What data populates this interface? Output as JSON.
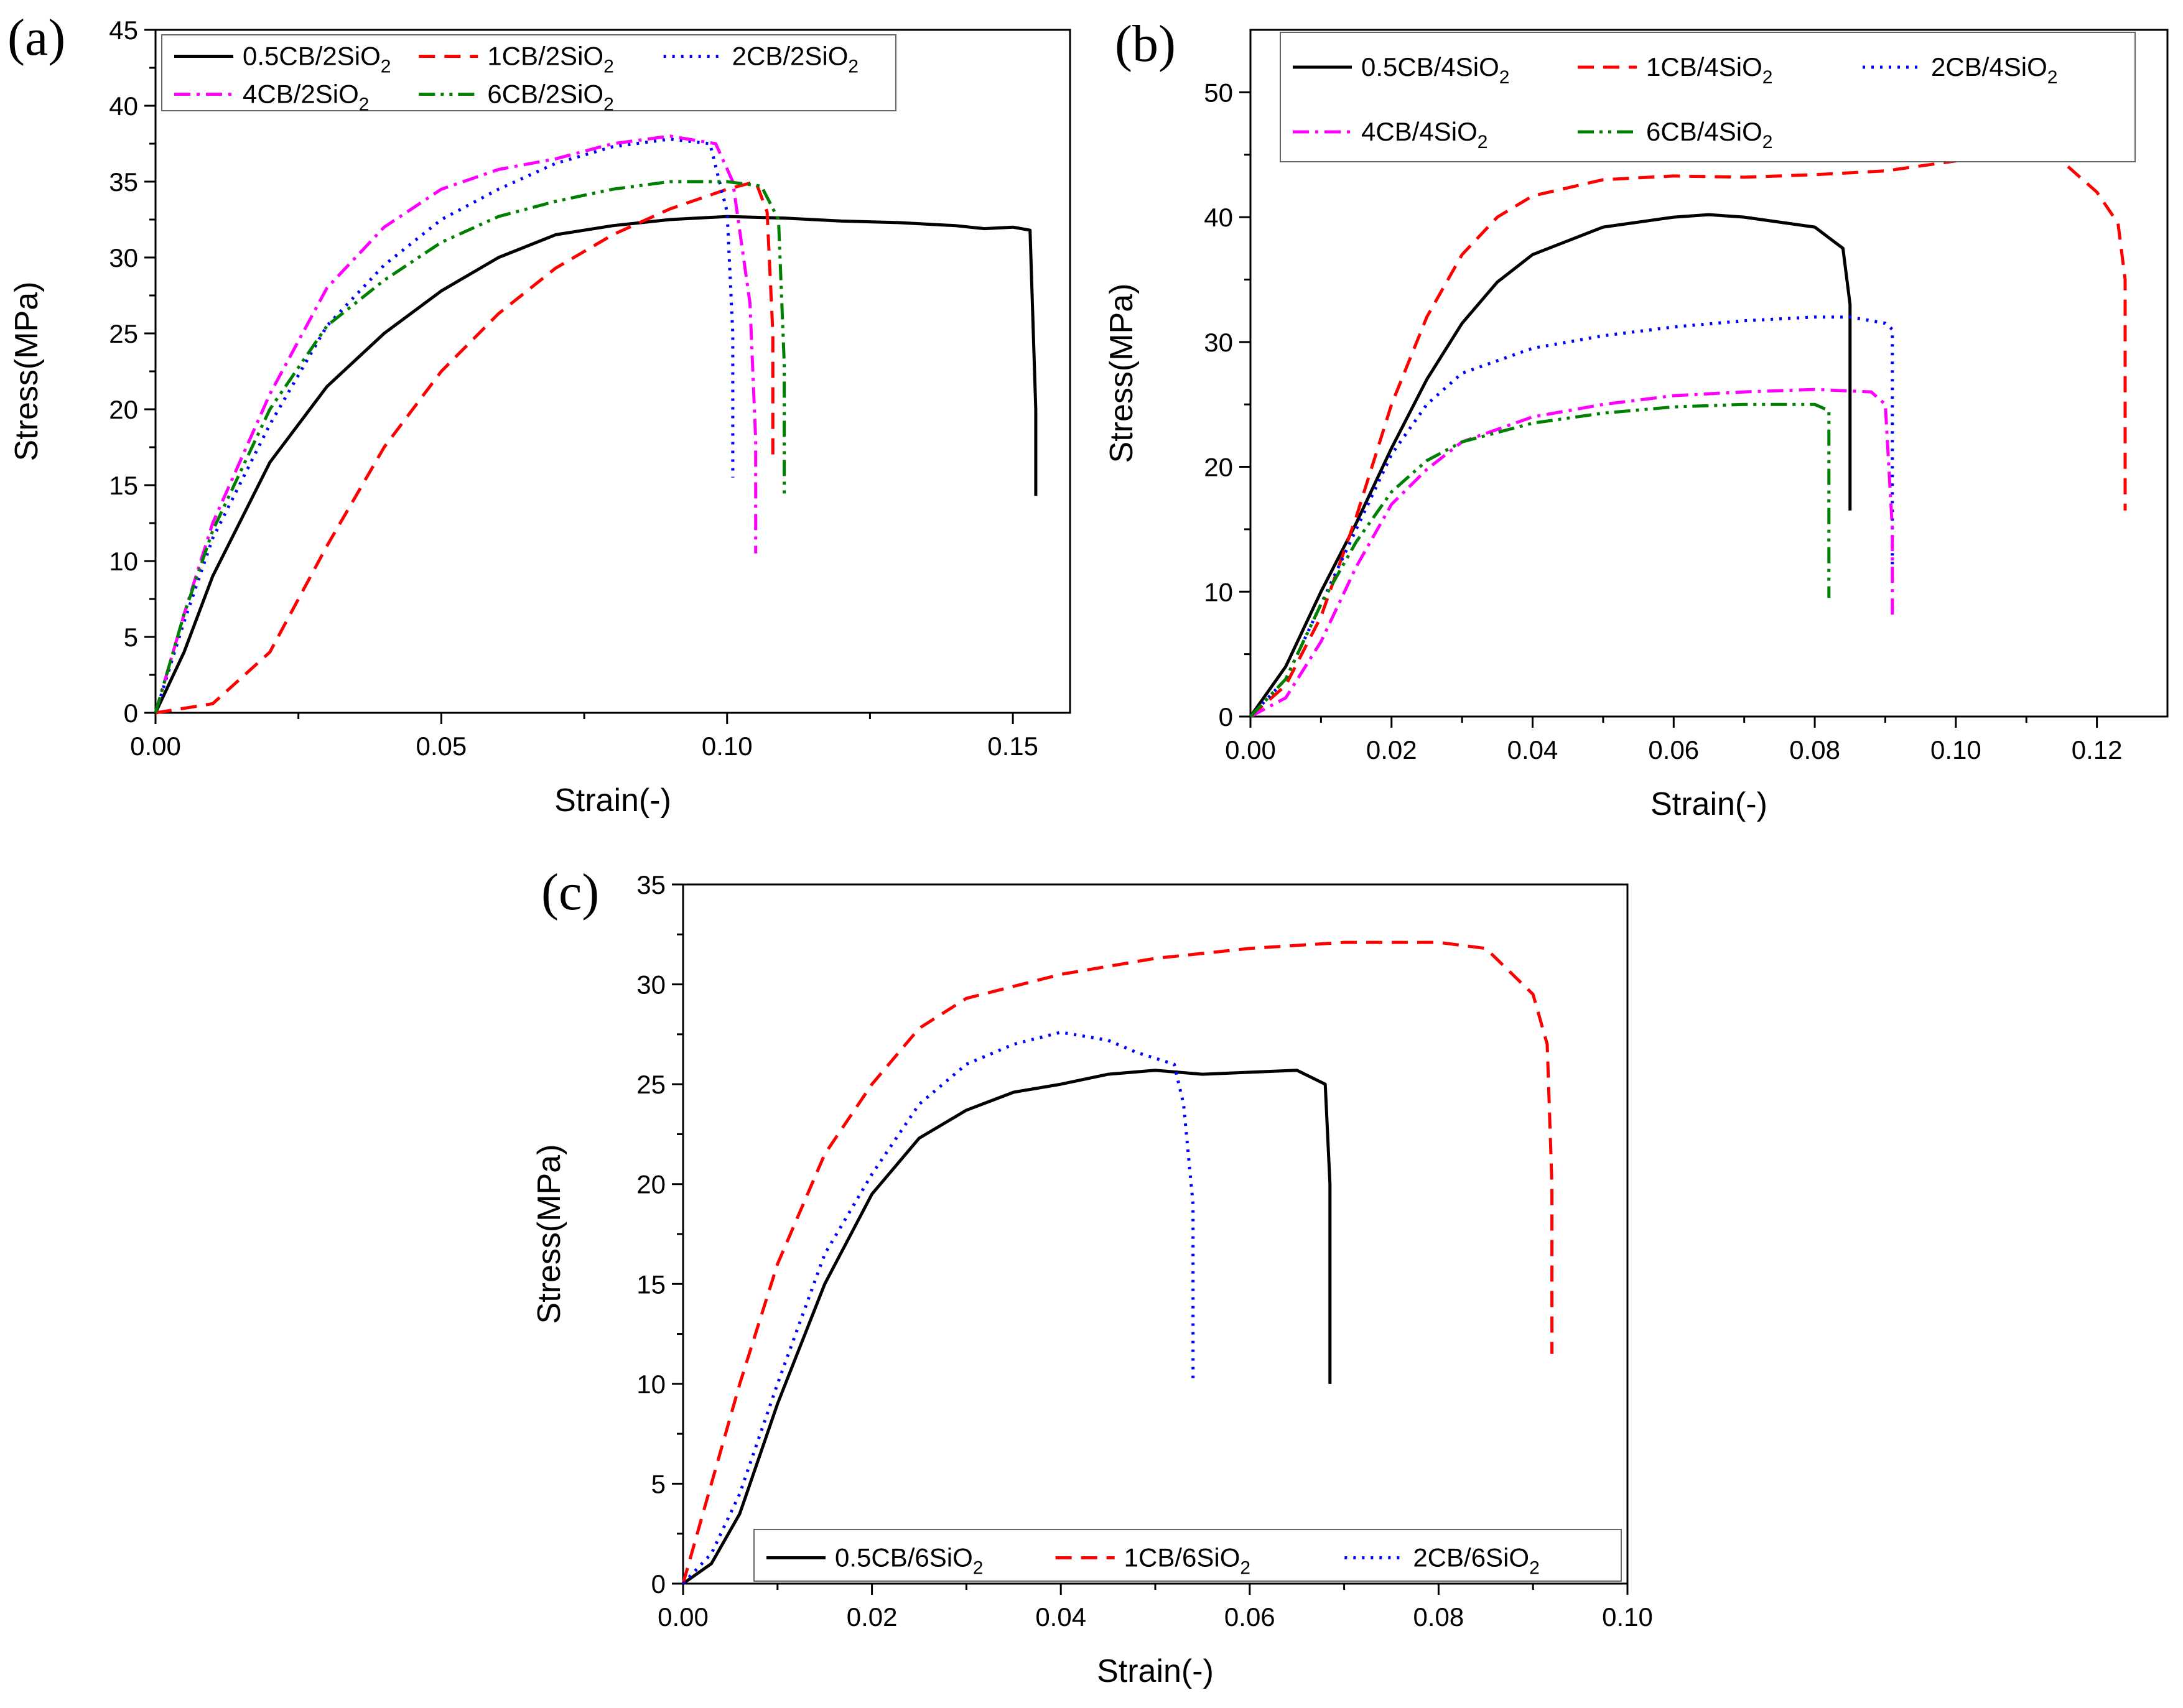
{
  "figure": {
    "xlabel": "Strain(-)",
    "ylabel": "Stress(MPa)"
  },
  "chart_data": [
    {
      "type": "line",
      "panel": "(a)",
      "xlabel": "Strain(-)",
      "ylabel": "Stress(MPa)",
      "xlim": [
        0,
        0.16
      ],
      "ylim": [
        0,
        45
      ],
      "xticks": [
        0,
        0.05,
        0.1,
        0.15
      ],
      "xtick_labels": [
        "0.00",
        "0.05",
        "0.10",
        "0.15"
      ],
      "yticks": [
        0,
        5,
        10,
        15,
        20,
        25,
        30,
        35,
        40,
        45
      ],
      "ytick_labels": [
        "0",
        "5",
        "10",
        "15",
        "20",
        "25",
        "30",
        "35",
        "40",
        "45"
      ],
      "grid": false,
      "legend_position": "top",
      "series": [
        {
          "name": "0.5CB/2SiO",
          "subscript": "2",
          "color": "#000000",
          "dash": "solid",
          "points": [
            [
              0,
              0
            ],
            [
              0.005,
              4
            ],
            [
              0.01,
              9
            ],
            [
              0.02,
              16.5
            ],
            [
              0.03,
              21.5
            ],
            [
              0.04,
              25
            ],
            [
              0.05,
              27.8
            ],
            [
              0.06,
              30
            ],
            [
              0.07,
              31.5
            ],
            [
              0.08,
              32.1
            ],
            [
              0.09,
              32.5
            ],
            [
              0.1,
              32.7
            ],
            [
              0.11,
              32.6
            ],
            [
              0.12,
              32.4
            ],
            [
              0.13,
              32.3
            ],
            [
              0.14,
              32.1
            ],
            [
              0.145,
              31.9
            ],
            [
              0.15,
              32
            ],
            [
              0.153,
              31.8
            ],
            [
              0.154,
              20
            ],
            [
              0.154,
              14.3
            ]
          ]
        },
        {
          "name": "1CB/2SiO",
          "subscript": "2",
          "color": "#ff0000",
          "dash": "dashed",
          "points": [
            [
              0,
              0
            ],
            [
              0.01,
              0.6
            ],
            [
              0.02,
              4
            ],
            [
              0.03,
              11
            ],
            [
              0.04,
              17.5
            ],
            [
              0.05,
              22.5
            ],
            [
              0.06,
              26.3
            ],
            [
              0.07,
              29.3
            ],
            [
              0.08,
              31.5
            ],
            [
              0.09,
              33.2
            ],
            [
              0.1,
              34.5
            ],
            [
              0.105,
              35
            ],
            [
              0.107,
              33
            ],
            [
              0.108,
              25
            ],
            [
              0.108,
              16.5
            ]
          ]
        },
        {
          "name": "2CB/2SiO",
          "subscript": "2",
          "color": "#0000ff",
          "dash": "dotted",
          "points": [
            [
              0,
              0
            ],
            [
              0.005,
              6
            ],
            [
              0.01,
              11.5
            ],
            [
              0.02,
              19
            ],
            [
              0.03,
              25.5
            ],
            [
              0.04,
              29.5
            ],
            [
              0.05,
              32.5
            ],
            [
              0.06,
              34.5
            ],
            [
              0.07,
              36.2
            ],
            [
              0.08,
              37.3
            ],
            [
              0.09,
              37.8
            ],
            [
              0.097,
              37.5
            ],
            [
              0.1,
              33
            ],
            [
              0.101,
              25
            ],
            [
              0.101,
              15.5
            ]
          ]
        },
        {
          "name": "4CB/2SiO",
          "subscript": "2",
          "color": "#ff00ff",
          "dash": "dashdot",
          "points": [
            [
              0,
              0
            ],
            [
              0.005,
              6.5
            ],
            [
              0.01,
              12.5
            ],
            [
              0.02,
              21
            ],
            [
              0.03,
              28
            ],
            [
              0.04,
              32
            ],
            [
              0.05,
              34.5
            ],
            [
              0.06,
              35.8
            ],
            [
              0.07,
              36.5
            ],
            [
              0.08,
              37.5
            ],
            [
              0.09,
              38
            ],
            [
              0.098,
              37.5
            ],
            [
              0.101,
              35
            ],
            [
              0.104,
              27
            ],
            [
              0.105,
              18
            ],
            [
              0.105,
              10.5
            ]
          ]
        },
        {
          "name": "6CB/2SiO",
          "subscript": "2",
          "color": "#008000",
          "dash": "dashdotdot",
          "points": [
            [
              0,
              0
            ],
            [
              0.005,
              6.5
            ],
            [
              0.01,
              12
            ],
            [
              0.02,
              20
            ],
            [
              0.03,
              25.5
            ],
            [
              0.04,
              28.5
            ],
            [
              0.05,
              31
            ],
            [
              0.06,
              32.7
            ],
            [
              0.07,
              33.7
            ],
            [
              0.08,
              34.5
            ],
            [
              0.09,
              35
            ],
            [
              0.1,
              35
            ],
            [
              0.106,
              34.7
            ],
            [
              0.109,
              32.5
            ],
            [
              0.11,
              23
            ],
            [
              0.11,
              14.3
            ]
          ]
        }
      ]
    },
    {
      "type": "line",
      "panel": "(b)",
      "xlabel": "Strain(-)",
      "ylabel": "Stress(MPa)",
      "xlim": [
        0,
        0.13
      ],
      "ylim": [
        0,
        55
      ],
      "xticks": [
        0,
        0.02,
        0.04,
        0.06,
        0.08,
        0.1,
        0.12
      ],
      "xtick_labels": [
        "0.00",
        "0.02",
        "0.04",
        "0.06",
        "0.08",
        "0.10",
        "0.12"
      ],
      "yticks": [
        0,
        10,
        20,
        30,
        40,
        50
      ],
      "ytick_labels": [
        "0",
        "10",
        "20",
        "30",
        "40",
        "50"
      ],
      "grid": false,
      "legend_position": "top",
      "series": [
        {
          "name": "0.5CB/4SiO",
          "subscript": "2",
          "color": "#000000",
          "dash": "solid",
          "points": [
            [
              0,
              0
            ],
            [
              0.005,
              4
            ],
            [
              0.01,
              10
            ],
            [
              0.015,
              15.5
            ],
            [
              0.02,
              21.5
            ],
            [
              0.025,
              27
            ],
            [
              0.03,
              31.5
            ],
            [
              0.035,
              34.8
            ],
            [
              0.04,
              37
            ],
            [
              0.05,
              39.2
            ],
            [
              0.06,
              40
            ],
            [
              0.065,
              40.2
            ],
            [
              0.07,
              40
            ],
            [
              0.08,
              39.2
            ],
            [
              0.084,
              37.5
            ],
            [
              0.085,
              33
            ],
            [
              0.085,
              25
            ],
            [
              0.085,
              16.5
            ]
          ]
        },
        {
          "name": "1CB/4SiO",
          "subscript": "2",
          "color": "#ff0000",
          "dash": "dashed",
          "points": [
            [
              0,
              0
            ],
            [
              0.005,
              2.5
            ],
            [
              0.01,
              8
            ],
            [
              0.015,
              16
            ],
            [
              0.02,
              25
            ],
            [
              0.025,
              32
            ],
            [
              0.03,
              37
            ],
            [
              0.035,
              40
            ],
            [
              0.04,
              41.7
            ],
            [
              0.05,
              43
            ],
            [
              0.06,
              43.3
            ],
            [
              0.07,
              43.2
            ],
            [
              0.08,
              43.4
            ],
            [
              0.09,
              43.7
            ],
            [
              0.1,
              44.5
            ],
            [
              0.11,
              45
            ],
            [
              0.115,
              44.5
            ],
            [
              0.12,
              42
            ],
            [
              0.123,
              39.5
            ],
            [
              0.124,
              35
            ],
            [
              0.124,
              25
            ],
            [
              0.124,
              16.5
            ]
          ]
        },
        {
          "name": "2CB/4SiO",
          "subscript": "2",
          "color": "#0000ff",
          "dash": "dotted",
          "points": [
            [
              0,
              0
            ],
            [
              0.005,
              3
            ],
            [
              0.01,
              9
            ],
            [
              0.015,
              15
            ],
            [
              0.02,
              21
            ],
            [
              0.025,
              25
            ],
            [
              0.03,
              27.5
            ],
            [
              0.04,
              29.5
            ],
            [
              0.05,
              30.5
            ],
            [
              0.06,
              31.2
            ],
            [
              0.07,
              31.7
            ],
            [
              0.08,
              32
            ],
            [
              0.085,
              32
            ],
            [
              0.09,
              31.5
            ],
            [
              0.091,
              31
            ],
            [
              0.091,
              25
            ],
            [
              0.091,
              12
            ]
          ]
        },
        {
          "name": "4CB/4SiO",
          "subscript": "2",
          "color": "#ff00ff",
          "dash": "dashdot",
          "points": [
            [
              0,
              0
            ],
            [
              0.005,
              1.5
            ],
            [
              0.01,
              6
            ],
            [
              0.015,
              12
            ],
            [
              0.02,
              17
            ],
            [
              0.025,
              19.8
            ],
            [
              0.03,
              22
            ],
            [
              0.04,
              24
            ],
            [
              0.05,
              25
            ],
            [
              0.06,
              25.7
            ],
            [
              0.07,
              26
            ],
            [
              0.08,
              26.2
            ],
            [
              0.088,
              26
            ],
            [
              0.09,
              25
            ],
            [
              0.091,
              15
            ],
            [
              0.091,
              8
            ]
          ]
        },
        {
          "name": "6CB/4SiO",
          "subscript": "2",
          "color": "#008000",
          "dash": "dashdotdot",
          "points": [
            [
              0,
              0
            ],
            [
              0.005,
              3
            ],
            [
              0.01,
              9
            ],
            [
              0.015,
              14
            ],
            [
              0.02,
              18
            ],
            [
              0.025,
              20.5
            ],
            [
              0.03,
              22
            ],
            [
              0.04,
              23.5
            ],
            [
              0.05,
              24.3
            ],
            [
              0.06,
              24.8
            ],
            [
              0.07,
              25
            ],
            [
              0.08,
              25
            ],
            [
              0.082,
              24.5
            ],
            [
              0.082,
              15
            ],
            [
              0.082,
              9.5
            ]
          ]
        }
      ]
    },
    {
      "type": "line",
      "panel": "(c)",
      "xlabel": "Strain(-)",
      "ylabel": "Stress(MPa)",
      "xlim": [
        0,
        0.1
      ],
      "ylim": [
        0,
        35
      ],
      "xticks": [
        0,
        0.02,
        0.04,
        0.06,
        0.08,
        0.1
      ],
      "xtick_labels": [
        "0.00",
        "0.02",
        "0.04",
        "0.06",
        "0.08",
        "0.10"
      ],
      "yticks": [
        0,
        5,
        10,
        15,
        20,
        25,
        30,
        35
      ],
      "ytick_labels": [
        "0",
        "5",
        "10",
        "15",
        "20",
        "25",
        "30",
        "35"
      ],
      "grid": false,
      "legend_position": "bottom",
      "series": [
        {
          "name": "0.5CB/6SiO",
          "subscript": "2",
          "color": "#000000",
          "dash": "solid",
          "points": [
            [
              0,
              0
            ],
            [
              0.003,
              1
            ],
            [
              0.006,
              3.5
            ],
            [
              0.01,
              9
            ],
            [
              0.015,
              15
            ],
            [
              0.02,
              19.5
            ],
            [
              0.025,
              22.3
            ],
            [
              0.03,
              23.7
            ],
            [
              0.035,
              24.6
            ],
            [
              0.04,
              25
            ],
            [
              0.045,
              25.5
            ],
            [
              0.05,
              25.7
            ],
            [
              0.055,
              25.5
            ],
            [
              0.06,
              25.6
            ],
            [
              0.065,
              25.7
            ],
            [
              0.068,
              25
            ],
            [
              0.0685,
              20
            ],
            [
              0.0685,
              10
            ]
          ]
        },
        {
          "name": "1CB/6SiO",
          "subscript": "2",
          "color": "#ff0000",
          "dash": "dashed",
          "points": [
            [
              0,
              0
            ],
            [
              0.003,
              5
            ],
            [
              0.006,
              10
            ],
            [
              0.01,
              16
            ],
            [
              0.015,
              21.5
            ],
            [
              0.02,
              25
            ],
            [
              0.025,
              27.8
            ],
            [
              0.03,
              29.3
            ],
            [
              0.04,
              30.5
            ],
            [
              0.05,
              31.3
            ],
            [
              0.06,
              31.8
            ],
            [
              0.07,
              32.1
            ],
            [
              0.08,
              32.1
            ],
            [
              0.085,
              31.8
            ],
            [
              0.09,
              29.5
            ],
            [
              0.0915,
              27
            ],
            [
              0.092,
              20
            ],
            [
              0.092,
              11.5
            ]
          ]
        },
        {
          "name": "2CB/6SiO",
          "subscript": "2",
          "color": "#0000ff",
          "dash": "dotted",
          "points": [
            [
              0,
              0
            ],
            [
              0.003,
              1.5
            ],
            [
              0.006,
              4.5
            ],
            [
              0.01,
              10
            ],
            [
              0.015,
              16.5
            ],
            [
              0.02,
              20.5
            ],
            [
              0.025,
              24
            ],
            [
              0.03,
              26
            ],
            [
              0.035,
              27
            ],
            [
              0.04,
              27.6
            ],
            [
              0.045,
              27.2
            ],
            [
              0.048,
              26.6
            ],
            [
              0.052,
              26
            ],
            [
              0.053,
              24
            ],
            [
              0.054,
              19
            ],
            [
              0.054,
              10.2
            ]
          ]
        }
      ]
    }
  ]
}
